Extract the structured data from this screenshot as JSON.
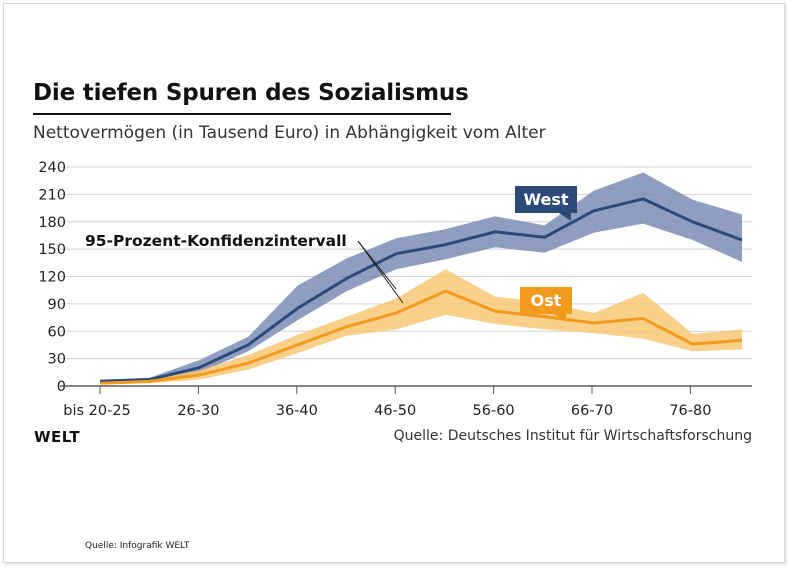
{
  "header": {
    "title": "Die tiefen Spuren des Sozialismus",
    "subtitle": "Nettovermögen (in Tausend Euro) in Abhängigkeit vom Alter"
  },
  "footer": {
    "brand": "WELT",
    "source": "Quelle: Deutsches Institut für Wirtschaftsforschung",
    "credit": "Quelle: Infografik WELT"
  },
  "chart_data": {
    "type": "line",
    "title": "Die tiefen Spuren des Sozialismus",
    "subtitle": "Nettovermögen (in Tausend Euro) in Abhängigkeit vom Alter",
    "xlabel": "",
    "ylabel": "",
    "x_tick_labels": [
      "bis 20-25",
      "26-30",
      "36-40",
      "46-50",
      "56-60",
      "66-70",
      "76-80"
    ],
    "y_ticks": [
      0,
      30,
      60,
      90,
      120,
      150,
      180,
      210,
      240
    ],
    "ylim": [
      0,
      240
    ],
    "grid": true,
    "annotation": "95-Prozent-Konfidenzintervall",
    "colors": {
      "west": "#2b4a7a",
      "west_band": "#7b8db5",
      "ost": "#f29a1e",
      "ost_band": "#f7c46b"
    },
    "series": [
      {
        "name": "West",
        "values": [
          5,
          7,
          20,
          45,
          85,
          118,
          145,
          155,
          169,
          163,
          192,
          205,
          180,
          160
        ],
        "lower": [
          4,
          5,
          14,
          38,
          72,
          104,
          128,
          139,
          152,
          146,
          168,
          178,
          160,
          136
        ],
        "upper": [
          7,
          9,
          28,
          54,
          110,
          140,
          162,
          172,
          186,
          176,
          214,
          234,
          204,
          188
        ]
      },
      {
        "name": "Ost",
        "values": [
          3,
          5,
          12,
          25,
          45,
          65,
          80,
          104,
          82,
          76,
          69,
          74,
          46,
          50
        ],
        "lower": [
          2,
          3,
          7,
          18,
          36,
          55,
          62,
          78,
          68,
          62,
          58,
          52,
          38,
          40
        ],
        "upper": [
          4,
          7,
          17,
          34,
          56,
          76,
          96,
          128,
          98,
          92,
          80,
          102,
          57,
          62
        ]
      }
    ]
  }
}
